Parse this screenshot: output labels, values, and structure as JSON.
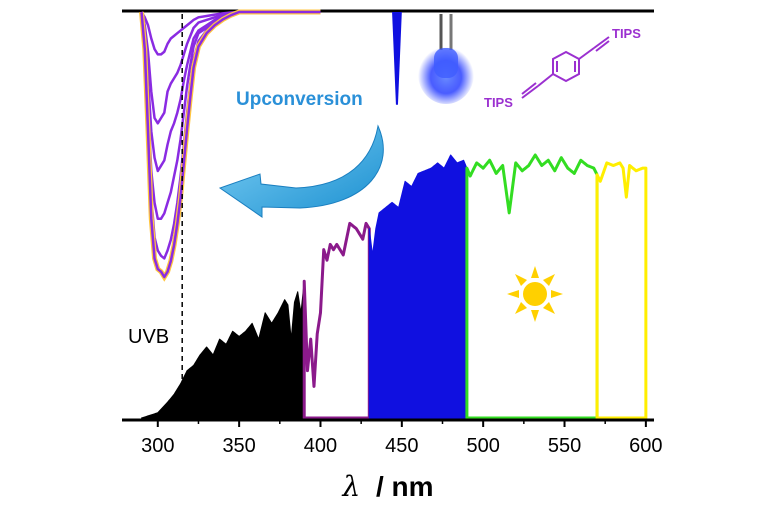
{
  "chart_data": {
    "type": "area",
    "x_axis": {
      "label_symbol": "λ",
      "label_unit": "/ nm",
      "range": [
        278,
        605
      ],
      "ticks": [
        "300",
        "350",
        "400",
        "450",
        "500",
        "550",
        "600"
      ]
    },
    "annotations": {
      "uvb_label": "UVB",
      "uvb_marker_nm": 315,
      "upconversion_label": "Upconversion",
      "tips_top": "TIPS",
      "tips_bottom": "TIPS"
    },
    "spectral_bands": [
      {
        "from": 290,
        "to": 390,
        "color": "#000000"
      },
      {
        "from": 390,
        "to": 430,
        "color": "#8b1a8b"
      },
      {
        "from": 430,
        "to": 490,
        "color": "#1010e0"
      },
      {
        "from": 490,
        "to": 570,
        "color": "#33dd22"
      },
      {
        "from": 570,
        "to": 600,
        "color": "#ffee00"
      }
    ],
    "solar_spectrum": {
      "x": [
        290,
        295,
        300,
        303,
        306,
        310,
        314,
        318,
        322,
        326,
        330,
        334,
        338,
        342,
        346,
        350,
        354,
        358,
        362,
        366,
        370,
        374,
        378,
        380,
        382,
        384,
        386,
        388,
        390,
        392,
        394,
        396,
        398,
        400,
        402,
        404,
        406,
        408,
        410,
        414,
        418,
        422,
        426,
        428,
        430,
        432,
        434,
        436,
        440,
        444,
        448,
        452,
        456,
        460,
        464,
        468,
        472,
        476,
        480,
        484,
        488,
        492,
        496,
        500,
        504,
        508,
        512,
        516,
        520,
        524,
        528,
        532,
        536,
        540,
        544,
        548,
        552,
        556,
        560,
        564,
        568,
        572,
        576,
        580,
        584,
        586,
        588,
        590,
        594,
        598,
        600
      ],
      "y": [
        0,
        0.01,
        0.02,
        0.04,
        0.06,
        0.09,
        0.13,
        0.18,
        0.2,
        0.24,
        0.27,
        0.24,
        0.3,
        0.28,
        0.33,
        0.31,
        0.33,
        0.36,
        0.3,
        0.4,
        0.36,
        0.4,
        0.45,
        0.43,
        0.3,
        0.44,
        0.48,
        0.4,
        0.52,
        0.18,
        0.3,
        0.12,
        0.32,
        0.4,
        0.64,
        0.6,
        0.66,
        0.64,
        0.66,
        0.62,
        0.74,
        0.72,
        0.68,
        0.74,
        0.72,
        0.62,
        0.72,
        0.78,
        0.8,
        0.82,
        0.8,
        0.9,
        0.88,
        0.93,
        0.94,
        0.95,
        0.97,
        0.95,
        1.0,
        0.97,
        0.98,
        0.92,
        0.97,
        0.95,
        0.98,
        0.93,
        0.96,
        0.78,
        0.97,
        0.94,
        0.96,
        1.0,
        0.96,
        0.98,
        0.94,
        0.99,
        0.95,
        0.93,
        0.98,
        0.96,
        0.95,
        0.9,
        0.97,
        0.96,
        0.97,
        0.95,
        0.84,
        0.96,
        0.94,
        0.95,
        0.95
      ]
    },
    "absorption_spectra": {
      "x": [
        290,
        292,
        294,
        296,
        298,
        300,
        302,
        304,
        306,
        308,
        310,
        312,
        314,
        316,
        318,
        320,
        322,
        325,
        330,
        335,
        340,
        345,
        350,
        360,
        370,
        380,
        390,
        400
      ],
      "series": [
        {
          "y": [
            0,
            0.02,
            0.05,
            0.1,
            0.14,
            0.16,
            0.16,
            0.15,
            0.12,
            0.1,
            0.09,
            0.08,
            0.07,
            0.06,
            0.05,
            0.04,
            0.03,
            0.02,
            0.015,
            0.01,
            0.005,
            0.002,
            0,
            0,
            0,
            0,
            0,
            0
          ]
        },
        {
          "y": [
            0,
            0.05,
            0.15,
            0.3,
            0.4,
            0.42,
            0.4,
            0.38,
            0.3,
            0.27,
            0.25,
            0.23,
            0.2,
            0.16,
            0.12,
            0.09,
            0.06,
            0.04,
            0.03,
            0.02,
            0.01,
            0.005,
            0,
            0,
            0,
            0,
            0,
            0
          ]
        },
        {
          "y": [
            0,
            0.08,
            0.25,
            0.45,
            0.55,
            0.6,
            0.58,
            0.56,
            0.5,
            0.45,
            0.42,
            0.38,
            0.33,
            0.26,
            0.2,
            0.15,
            0.1,
            0.07,
            0.05,
            0.03,
            0.015,
            0.005,
            0,
            0,
            0,
            0,
            0,
            0
          ]
        },
        {
          "y": [
            0,
            0.1,
            0.35,
            0.6,
            0.72,
            0.78,
            0.78,
            0.76,
            0.72,
            0.68,
            0.62,
            0.56,
            0.48,
            0.38,
            0.28,
            0.2,
            0.13,
            0.08,
            0.06,
            0.04,
            0.02,
            0.008,
            0,
            0,
            0,
            0,
            0,
            0
          ]
        },
        {
          "y": [
            0,
            0.12,
            0.4,
            0.7,
            0.85,
            0.9,
            0.92,
            0.93,
            0.9,
            0.86,
            0.8,
            0.72,
            0.62,
            0.5,
            0.38,
            0.27,
            0.18,
            0.11,
            0.07,
            0.045,
            0.025,
            0.01,
            0,
            0,
            0,
            0,
            0,
            0
          ]
        },
        {
          "y": [
            0,
            0.14,
            0.45,
            0.78,
            0.93,
            0.97,
            0.98,
            1.0,
            0.98,
            0.94,
            0.88,
            0.8,
            0.7,
            0.57,
            0.44,
            0.32,
            0.21,
            0.13,
            0.08,
            0.05,
            0.028,
            0.012,
            0,
            0,
            0,
            0,
            0,
            0
          ]
        }
      ]
    },
    "led_emission": {
      "center_nm": 447,
      "width_nm": 3,
      "depth": 0.35,
      "color": "#1010e0"
    }
  }
}
